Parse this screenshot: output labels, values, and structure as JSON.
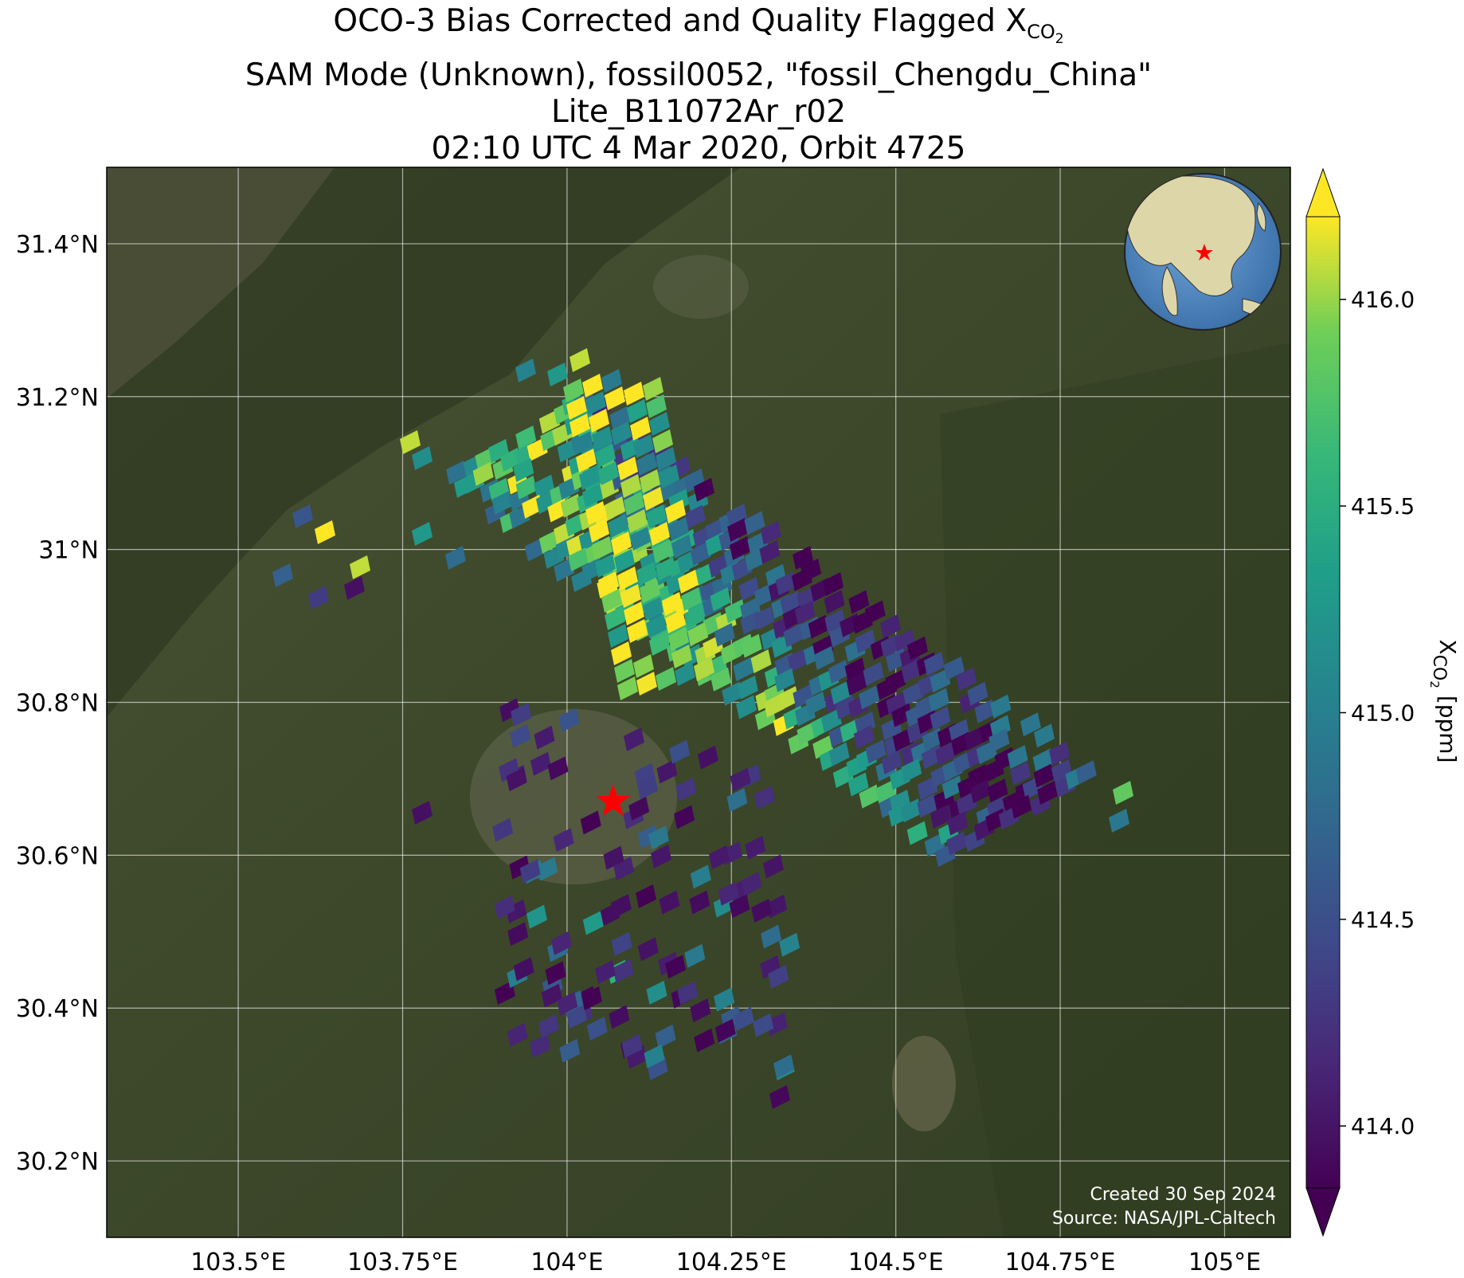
{
  "title": {
    "line1_main": "OCO-3 Bias Corrected and Quality Flagged X",
    "line1_sub": "CO",
    "line1_subsub": "2",
    "line2": "SAM Mode (Unknown), fossil0052, \"fossil_Chengdu_China\"",
    "line3": "Lite_B11072Ar_r02",
    "line4": "02:10 UTC 4 Mar 2020, Orbit 4725"
  },
  "map": {
    "lon_range": [
      103.3,
      105.1
    ],
    "lat_range": [
      30.1,
      31.5
    ],
    "lon_ticks": [
      {
        "value": 103.5,
        "label": "103.5°E"
      },
      {
        "value": 103.75,
        "label": "103.75°E"
      },
      {
        "value": 104.0,
        "label": "104°E"
      },
      {
        "value": 104.25,
        "label": "104.25°E"
      },
      {
        "value": 104.5,
        "label": "104.5°E"
      },
      {
        "value": 104.75,
        "label": "104.75°E"
      },
      {
        "value": 105.0,
        "label": "105°E"
      }
    ],
    "lat_ticks": [
      {
        "value": 31.4,
        "label": "31.4°N"
      },
      {
        "value": 31.2,
        "label": "31.2°N"
      },
      {
        "value": 31.0,
        "label": "31°N"
      },
      {
        "value": 30.8,
        "label": "30.8°N"
      },
      {
        "value": 30.6,
        "label": "30.6°N"
      },
      {
        "value": 30.4,
        "label": "30.4°N"
      },
      {
        "value": 30.2,
        "label": "30.2°N"
      }
    ],
    "grid": true,
    "target_marker": {
      "lon": 104.07,
      "lat": 30.67,
      "symbol": "star",
      "color": "#ff0000"
    },
    "background": "satellite imagery",
    "swath": {
      "description": "XCO2 soundings along SAM swath",
      "inset_globe": "top-right, centered on East Asia, red star at target"
    }
  },
  "colorbar": {
    "colormap": "viridis",
    "min": 413.85,
    "max": 416.2,
    "ticks": [
      {
        "value": 414.0,
        "label": "414.0"
      },
      {
        "value": 414.5,
        "label": "414.5"
      },
      {
        "value": 415.0,
        "label": "415.0"
      },
      {
        "value": 415.5,
        "label": "415.5"
      },
      {
        "value": 416.0,
        "label": "416.0"
      }
    ],
    "label_main": "X",
    "label_sub": "CO",
    "label_subsub": "2",
    "label_unit": " [ppm]",
    "extend": "both"
  },
  "credits": {
    "line1": "Created 30 Sep 2024",
    "line2": "Source: NASA/JPL-Caltech"
  }
}
